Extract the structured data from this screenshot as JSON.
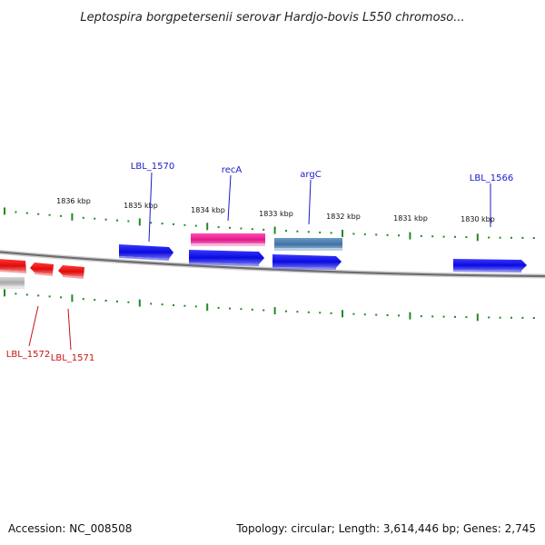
{
  "title": "Leptospira borgpetersenii serovar Hardjo-bovis L550 chromoso...",
  "footer": {
    "accession": "Accession: NC_008508",
    "topology": "Topology: circular; Length: 3,614,446 bp; Genes: 2,745"
  },
  "scale_labels": [
    "1836 kbp",
    "1835 kbp",
    "1834 kbp",
    "1833 kbp",
    "1832 kbp",
    "1831 kbp",
    "1830 kbp"
  ],
  "gene_labels": {
    "lbl_1570": "LBL_1570",
    "reca": "recA",
    "argc": "argC",
    "lbl_1566": "LBL_1566",
    "lbl_1572": "LBL_1572",
    "lbl_1571": "LBL_1571"
  },
  "colors": {
    "backbone": "#777777",
    "tick": "#228822",
    "forward_gene": "#1010ee",
    "reverse_gene": "#ee1111",
    "reca_feature": "#ee2a9a",
    "argc_feature": "#4a7fb0",
    "pseudo_feature": "#bbbbbb"
  }
}
